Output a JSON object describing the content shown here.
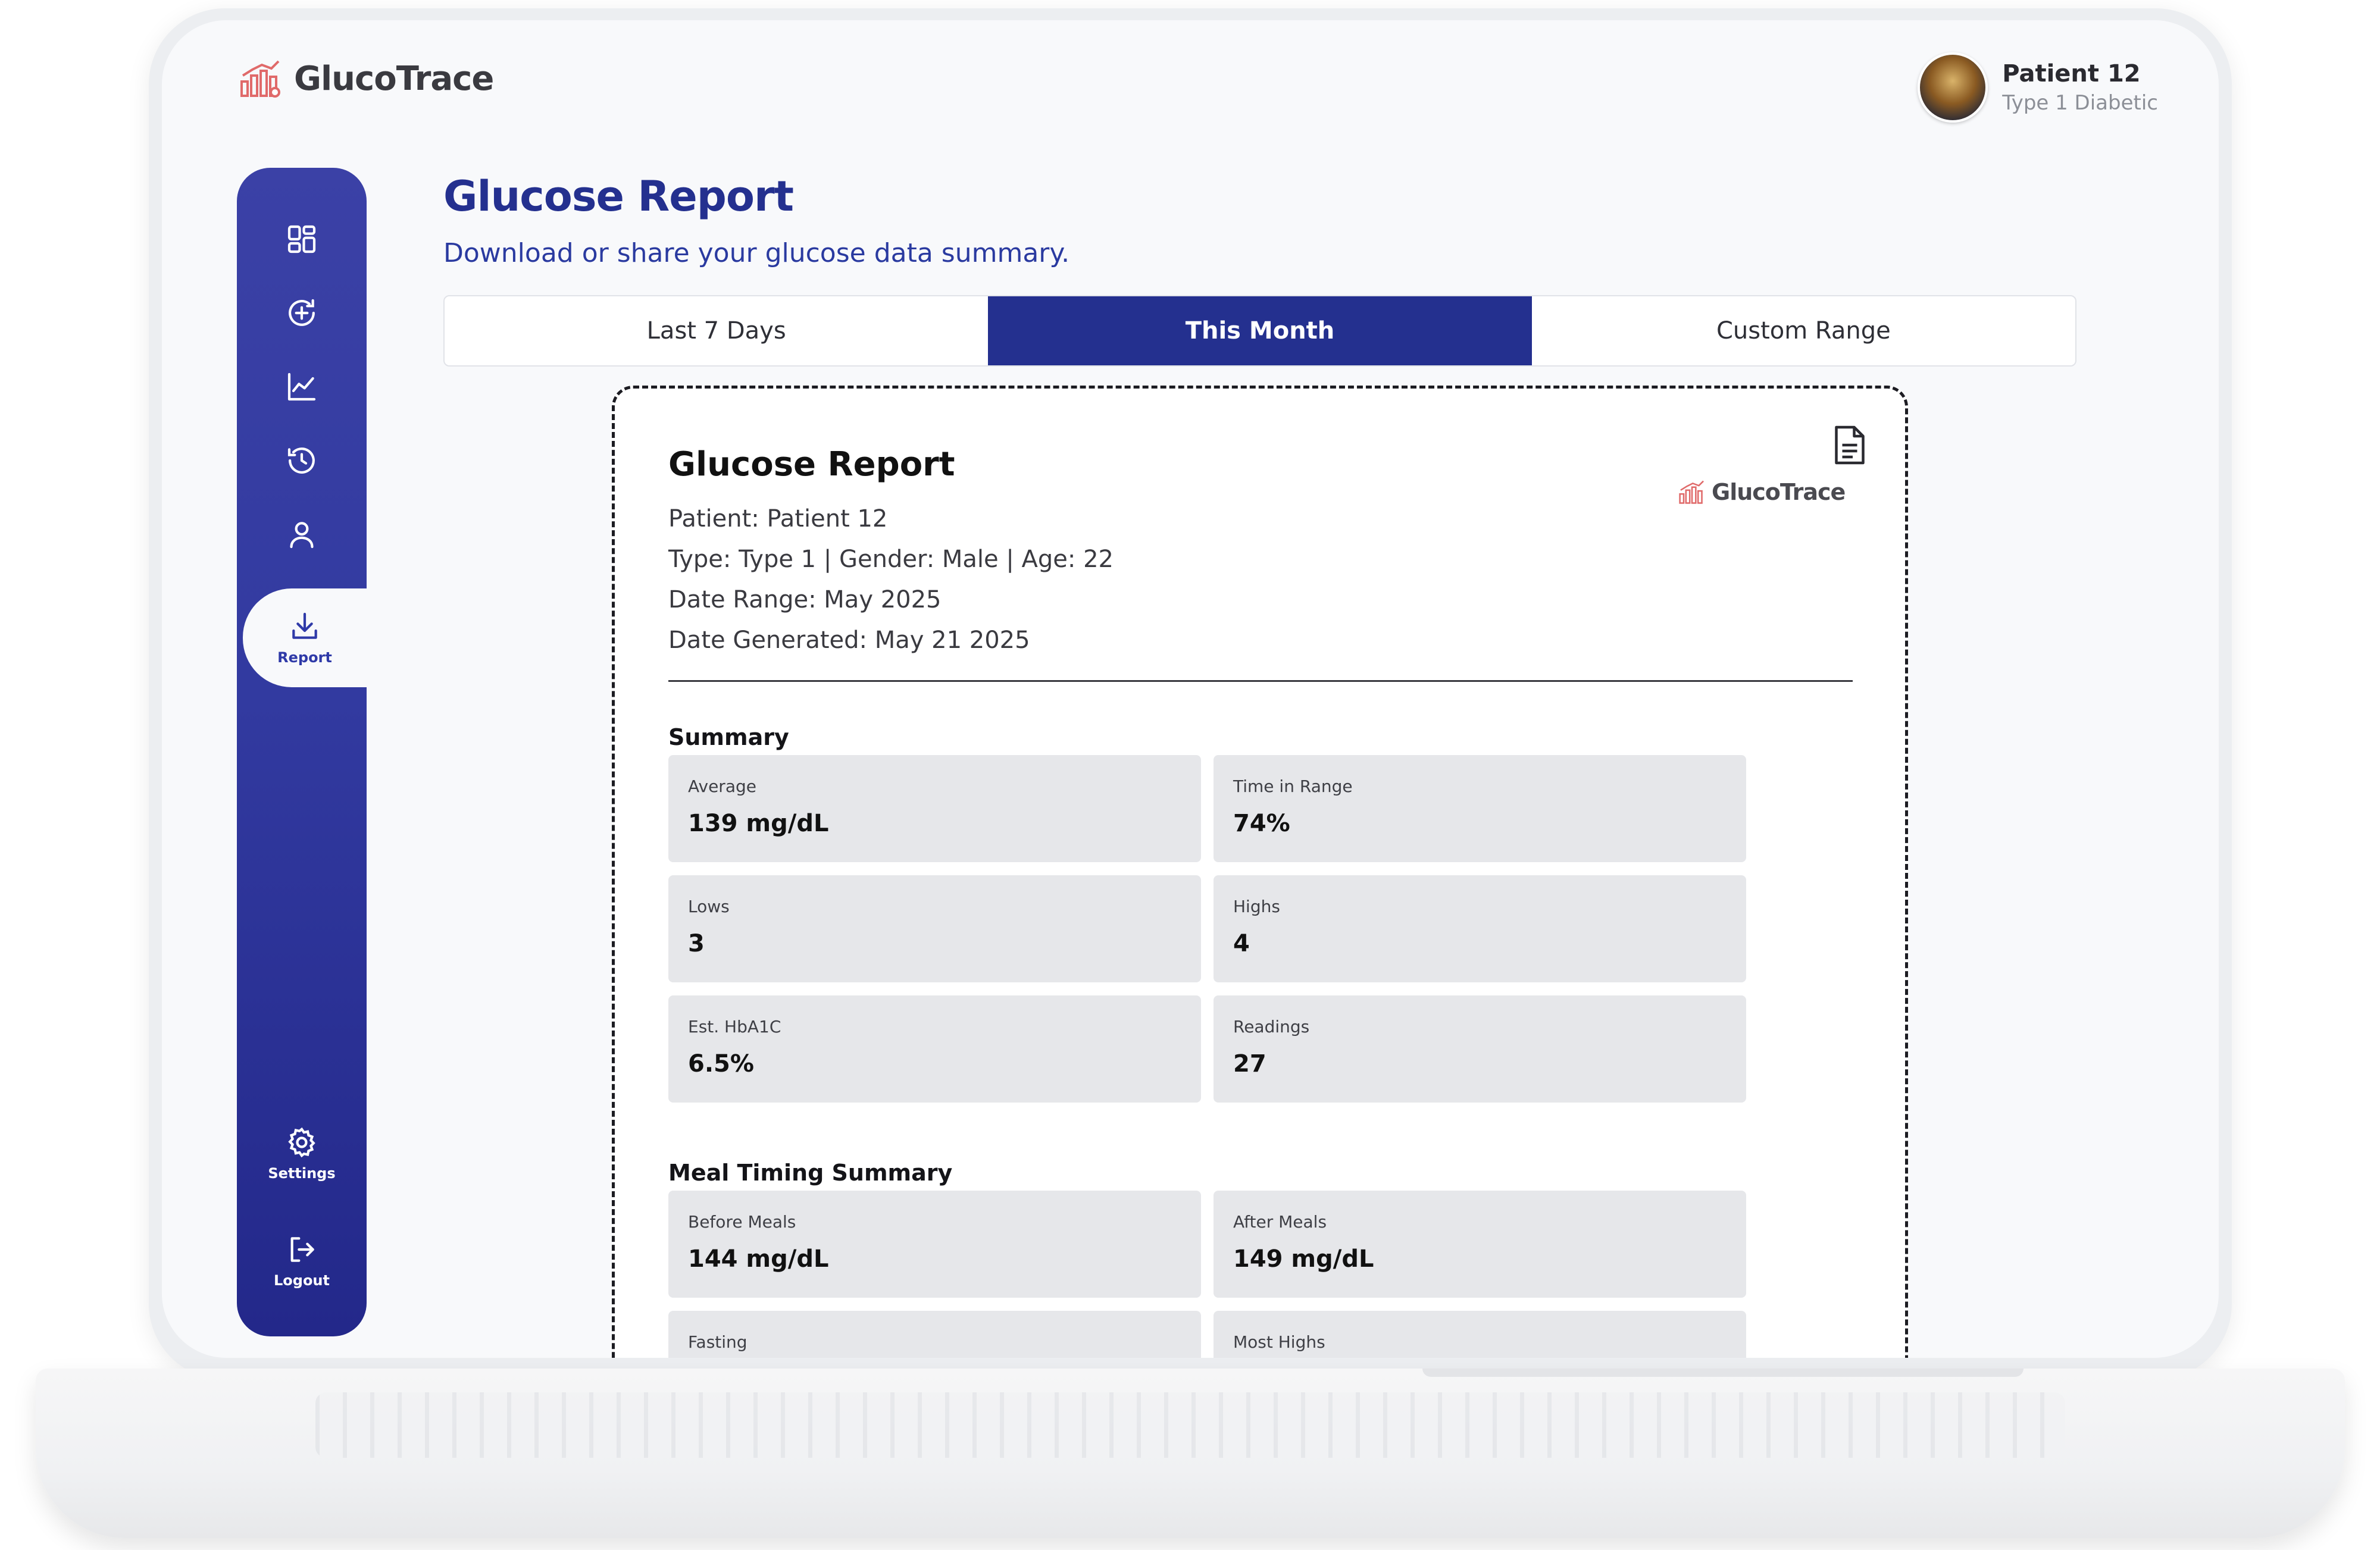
{
  "app": {
    "name": "GlucoTrace"
  },
  "user": {
    "name": "Patient 12",
    "subtitle": "Type 1 Diabetic"
  },
  "sidebar": {
    "items": [
      {
        "icon": "dashboard-icon",
        "label": ""
      },
      {
        "icon": "add-reading-icon",
        "label": ""
      },
      {
        "icon": "trends-chart-icon",
        "label": ""
      },
      {
        "icon": "history-icon",
        "label": ""
      },
      {
        "icon": "profile-icon",
        "label": ""
      },
      {
        "icon": "download-icon",
        "label": "Report",
        "active": true
      },
      {
        "icon": "gear-icon",
        "label": "Settings"
      },
      {
        "icon": "logout-icon",
        "label": "Logout"
      }
    ]
  },
  "page": {
    "title": "Glucose Report",
    "subtitle": "Download or share your glucose data summary."
  },
  "tabs": [
    {
      "label": "Last 7 Days",
      "active": false
    },
    {
      "label": "This Month",
      "active": true
    },
    {
      "label": "Custom Range",
      "active": false
    }
  ],
  "report": {
    "title": "Glucose Report",
    "brand": "GlucoTrace",
    "patient": "Patient: Patient 12",
    "type_line": "Type: Type 1 | Gender: Male | Age: 22",
    "date_range": "Date Range: May 2025",
    "date_generated": "Date Generated: May 21 2025",
    "summary_title": "Summary",
    "summary": [
      {
        "label": "Average",
        "value": "139 mg/dL"
      },
      {
        "label": "Time in Range",
        "value": "74%"
      },
      {
        "label": "Lows",
        "value": "3"
      },
      {
        "label": "Highs",
        "value": "4"
      },
      {
        "label": "Est. HbA1C",
        "value": "6.5%"
      },
      {
        "label": "Readings",
        "value": "27"
      }
    ],
    "meal_title": "Meal Timing Summary",
    "meal": [
      {
        "label": "Before Meals",
        "value": "144 mg/dL"
      },
      {
        "label": "After Meals",
        "value": "149 mg/dL"
      },
      {
        "label": "Fasting",
        "value": ""
      },
      {
        "label": "Most Highs",
        "value": ""
      }
    ]
  },
  "colors": {
    "primary": "#24308f",
    "sidebar": "#323aa0",
    "brand_accent": "#e06a6a",
    "card_tile": "#e6e7ea"
  }
}
